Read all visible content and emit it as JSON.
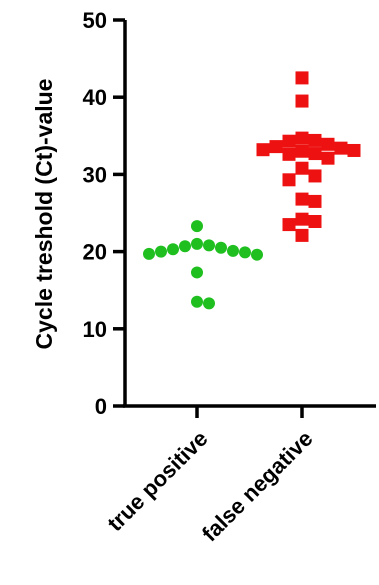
{
  "chart_data": {
    "type": "scatter",
    "ylabel": "Cycle treshold (Ct)-value",
    "xlabel": "",
    "title": "",
    "categories": [
      "true positive",
      "false negative"
    ],
    "ylim": [
      0,
      50
    ],
    "yticks": [
      0,
      10,
      20,
      30,
      40,
      50
    ],
    "grid": false,
    "legend": "none",
    "series": [
      {
        "category": "true positive",
        "marker": "circle",
        "color": "#1fbf1f",
        "values": [
          23.3,
          21.0,
          20.8,
          20.7,
          20.5,
          20.3,
          20.1,
          20.0,
          19.9,
          19.7,
          19.6,
          17.3,
          13.5,
          13.3
        ]
      },
      {
        "category": "false negative",
        "marker": "square",
        "color": "#ee1111",
        "values": [
          42.5,
          39.5,
          34.7,
          34.4,
          34.3,
          33.9,
          33.6,
          33.4,
          33.2,
          33.1,
          33.0,
          32.7,
          32.6,
          32.1,
          30.8,
          29.8,
          29.3,
          26.8,
          26.5,
          24.2,
          23.9,
          23.5,
          22.1
        ]
      }
    ]
  }
}
